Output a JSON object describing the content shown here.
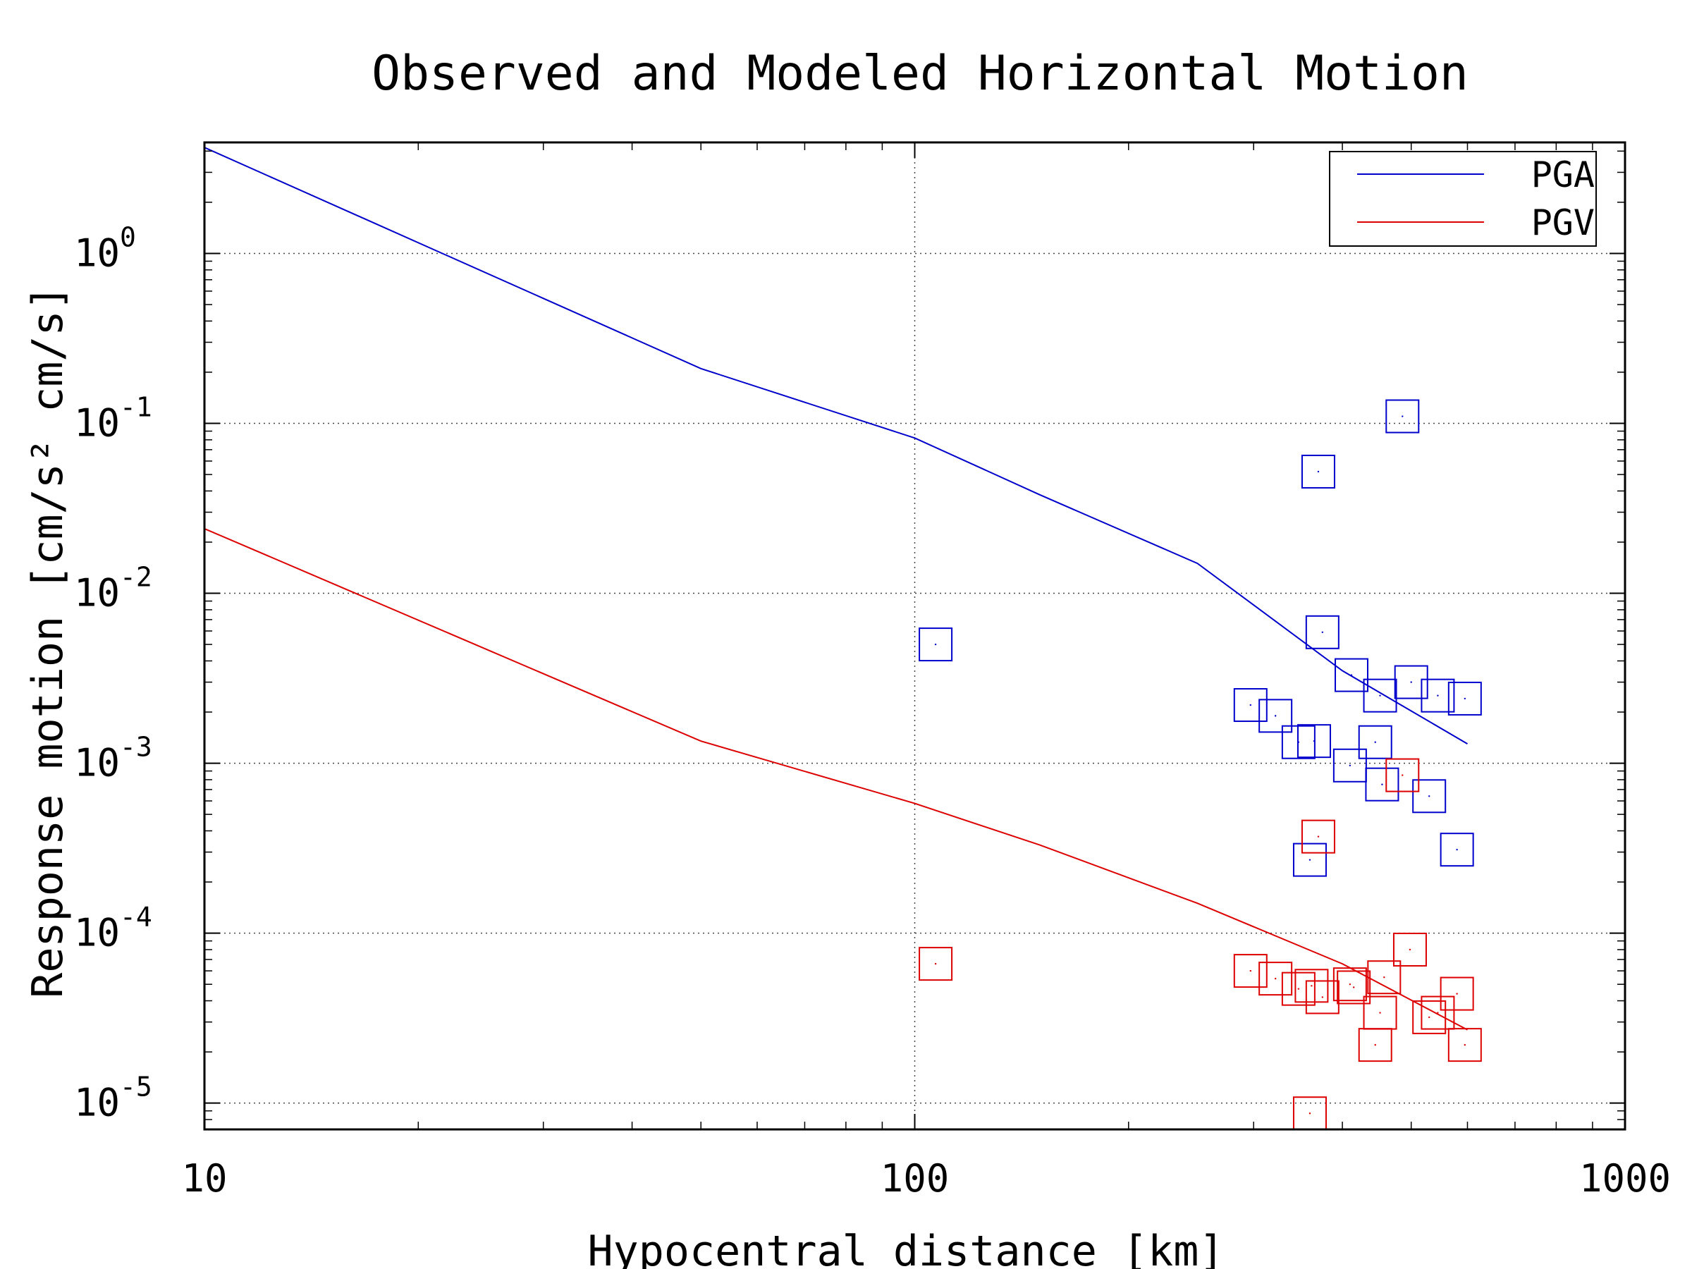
{
  "chart_data": {
    "type": "scatter",
    "title": "Observed and Modeled Horizontal Motion",
    "xlabel": "Hypocentral distance [km]",
    "ylabel": "Response motion [cm/s² cm/s]",
    "xscale": "log",
    "yscale": "log",
    "xlim": [
      10,
      1000
    ],
    "ylim": [
      7e-06,
      4.5
    ],
    "x_ticks": [
      "10",
      "100",
      "1000"
    ],
    "y_ticks": [
      {
        "base": "10",
        "exp": "0"
      },
      {
        "base": "10",
        "exp": "-1"
      },
      {
        "base": "10",
        "exp": "-2"
      },
      {
        "base": "10",
        "exp": "-3"
      },
      {
        "base": "10",
        "exp": "-4"
      },
      {
        "base": "10",
        "exp": "-5"
      }
    ],
    "y_tick_values": [
      1,
      0.1,
      0.01,
      0.001,
      0.0001,
      1e-05
    ],
    "grid": true,
    "legend_position": "top-right",
    "colors": {
      "pga": "#0000cc",
      "pgv": "#dd0000"
    },
    "series": [
      {
        "name": "PGA",
        "kind": "line",
        "x": [
          10,
          50,
          100,
          150,
          250,
          400,
          600
        ],
        "y": [
          4.2,
          0.21,
          0.082,
          0.038,
          0.015,
          0.0035,
          0.0013
        ]
      },
      {
        "name": "PGV",
        "kind": "line",
        "x": [
          10,
          50,
          100,
          150,
          250,
          400,
          600
        ],
        "y": [
          0.024,
          0.00135,
          0.00058,
          0.00033,
          0.00015,
          6.6e-05,
          2.7e-05
        ]
      },
      {
        "name": "",
        "kind": "markers",
        "color": "pga",
        "x": [
          107,
          486,
          370,
          375,
          412,
          452,
          500,
          545,
          595,
          297,
          322,
          347,
          365,
          410,
          445,
          455,
          530,
          360,
          580
        ],
        "y": [
          0.005,
          0.11,
          0.052,
          0.0059,
          0.0033,
          0.0025,
          0.003,
          0.0025,
          0.0024,
          0.0022,
          0.0019,
          0.00133,
          0.00135,
          0.00097,
          0.00133,
          0.00075,
          0.00064,
          0.00027,
          0.00031
        ]
      },
      {
        "name": "",
        "kind": "markers",
        "color": "pgv",
        "x": [
          107,
          486,
          370,
          498,
          297,
          322,
          347,
          362,
          375,
          410,
          415,
          458,
          452,
          445,
          530,
          545,
          580,
          595,
          360
        ],
        "y": [
          6.6e-05,
          0.00085,
          0.00037,
          8e-05,
          6e-05,
          5.4e-05,
          4.7e-05,
          4.9e-05,
          4.2e-05,
          5e-05,
          4.8e-05,
          5.5e-05,
          3.4e-05,
          2.2e-05,
          3.2e-05,
          3.4e-05,
          4.4e-05,
          2.2e-05,
          8.7e-06
        ]
      }
    ]
  }
}
